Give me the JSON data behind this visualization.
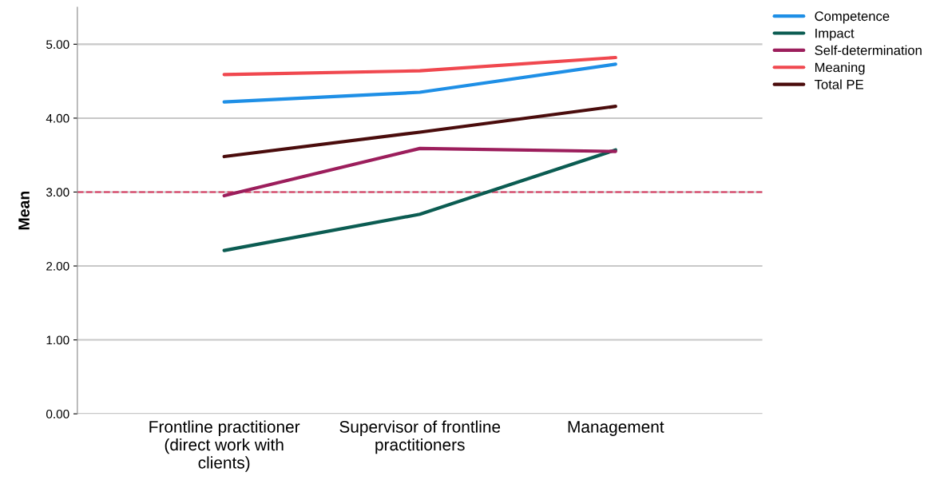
{
  "chart_data": {
    "type": "line",
    "ylabel": "Mean",
    "categories": [
      "Frontline practitioner\n(direct work with\nclients)",
      "Supervisor of frontline\npractitioners",
      "Management"
    ],
    "series": [
      {
        "name": "Competence",
        "color": "#1e8fe6",
        "values": [
          4.22,
          4.35,
          4.73
        ]
      },
      {
        "name": "Impact",
        "color": "#0b5c52",
        "values": [
          2.21,
          2.7,
          3.57
        ]
      },
      {
        "name": "Self-determination",
        "color": "#9c1e5c",
        "values": [
          2.95,
          3.59,
          3.55
        ]
      },
      {
        "name": "Meaning",
        "color": "#f0484f",
        "values": [
          4.59,
          4.64,
          4.82
        ]
      },
      {
        "name": "Total PE",
        "color": "#4a0c0c",
        "values": [
          3.48,
          3.81,
          4.16
        ]
      }
    ],
    "ylim": [
      0,
      5.5
    ],
    "yticks": [
      {
        "value": 0,
        "label": "0.00"
      },
      {
        "value": 1,
        "label": "1.00"
      },
      {
        "value": 2,
        "label": "2.00"
      },
      {
        "value": 3,
        "label": "3.00"
      },
      {
        "value": 4,
        "label": "4.00"
      },
      {
        "value": 5,
        "label": "5.00"
      }
    ],
    "ref_lines": [
      {
        "axis": "y",
        "value": 3,
        "color": "#d8365c",
        "line_style": "dashed"
      }
    ],
    "grid": "y",
    "legend": "top right",
    "marker": "none",
    "line_style": "solid"
  }
}
